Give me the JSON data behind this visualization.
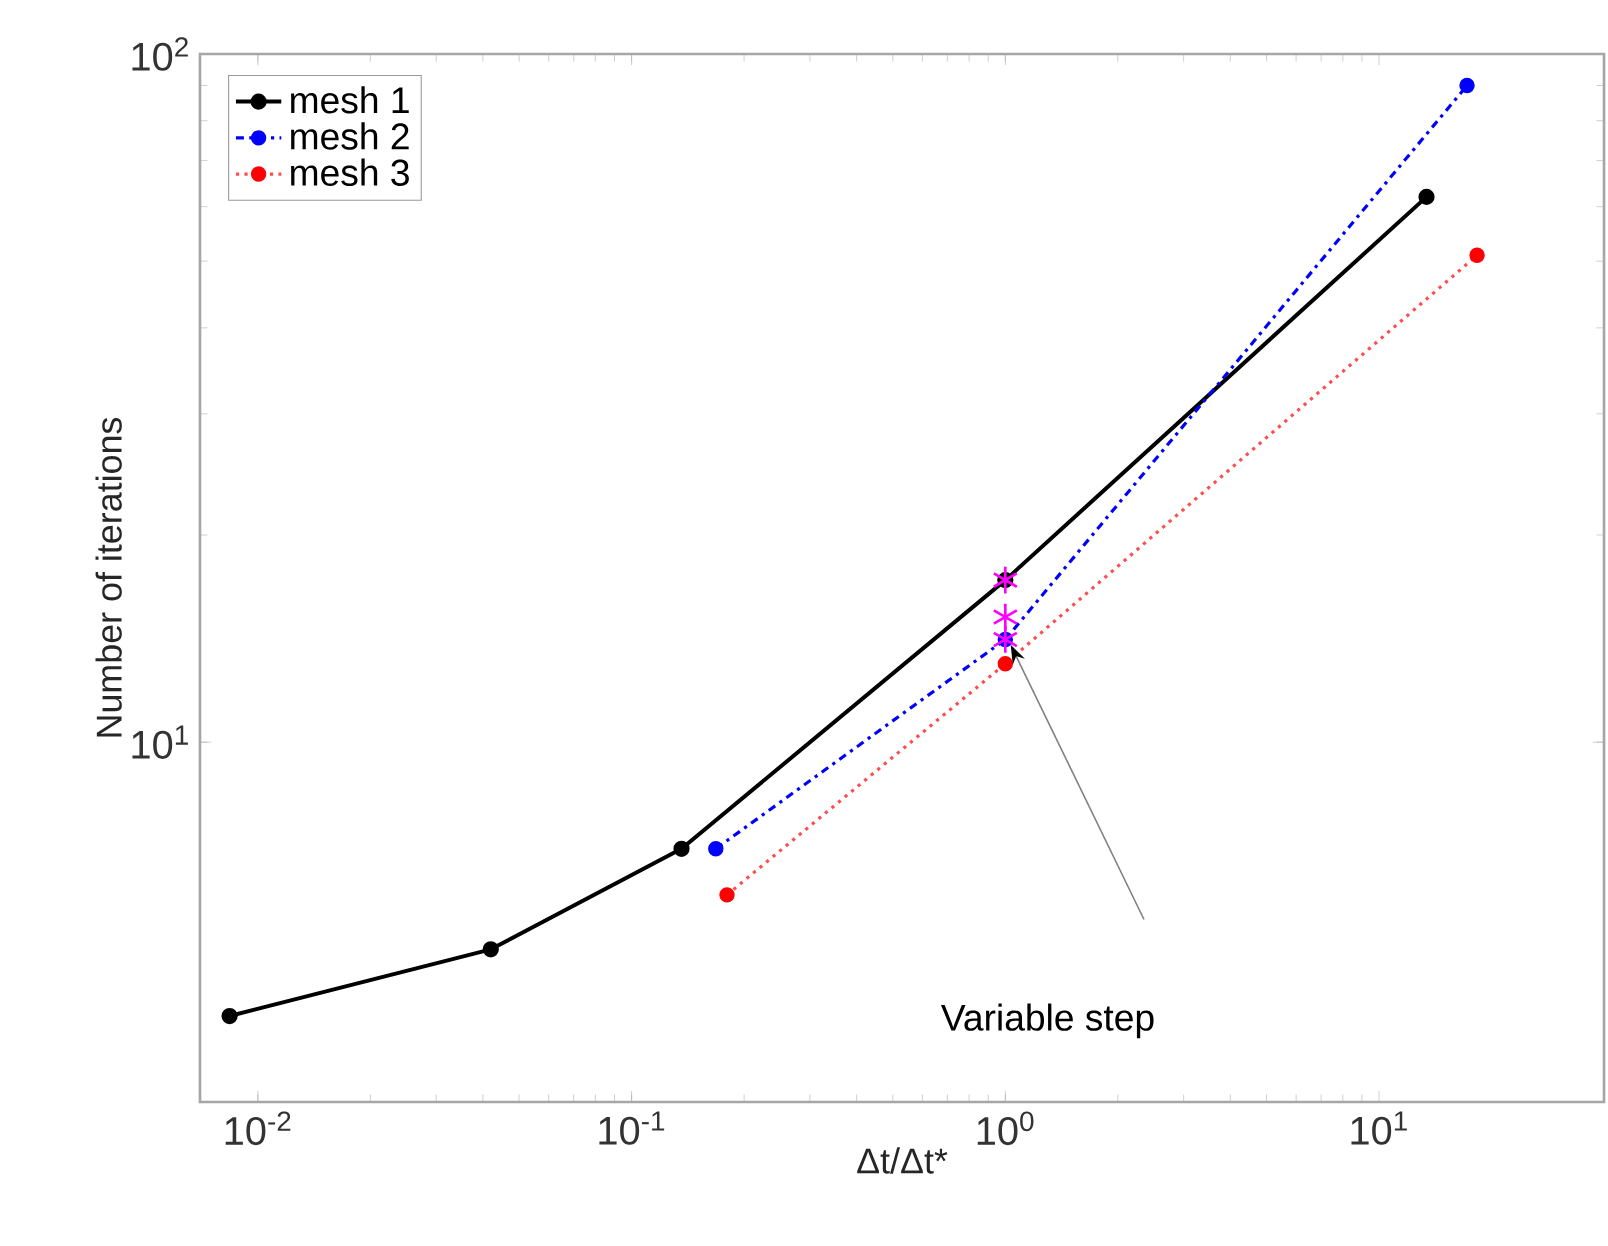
{
  "chart_data": {
    "type": "line",
    "xlabel": "Δt/Δt*",
    "ylabel": "Number of iterations",
    "log": "xy",
    "xlim": [
      0.007,
      40
    ],
    "ylim": [
      3,
      100
    ],
    "xticks": [
      {
        "value": 0.01,
        "label": "10$^{-2}$"
      },
      {
        "value": 0.1,
        "label": "10$^{-1}$"
      },
      {
        "value": 1,
        "label": "10$^{0}$"
      },
      {
        "value": 10,
        "label": "10$^{1}$"
      }
    ],
    "yticks": [
      {
        "value": 10,
        "label": "10$^{1}$"
      },
      {
        "value": 100,
        "label": "10$^{2}$"
      }
    ],
    "legend": "top left",
    "marker": "circle",
    "series": [
      {
        "name": "mesh 1",
        "color": "#000000",
        "line_style": "solid",
        "x": [
          0.0084,
          0.042,
          0.136,
          1,
          13.4
        ],
        "values": [
          4.0,
          5.0,
          7.0,
          17.2,
          62
        ]
      },
      {
        "name": "mesh 2",
        "color": "#0000ff",
        "line_style": "dashdot",
        "x": [
          0.168,
          1,
          17.2
        ],
        "values": [
          7.0,
          14.1,
          90
        ]
      },
      {
        "name": "mesh 3",
        "color": "#ff0000",
        "line_style": "dotted",
        "x": [
          0.18,
          1,
          18.3
        ],
        "values": [
          6.0,
          13.0,
          51
        ]
      },
      {
        "type": "scatter",
        "color": "#ff00ff",
        "marker": "cross",
        "x": [
          1,
          1,
          1
        ],
        "values": [
          17.2,
          15.2,
          14.1
        ]
      }
    ],
    "annotations": [
      "Variable step"
    ]
  }
}
